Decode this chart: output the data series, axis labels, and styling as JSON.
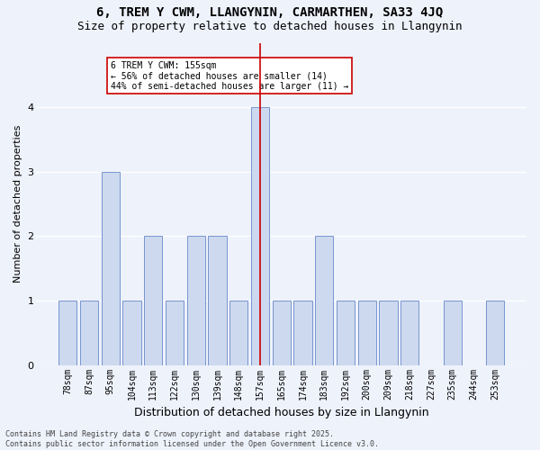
{
  "title": "6, TREM Y CWM, LLANGYNIN, CARMARTHEN, SA33 4JQ",
  "subtitle": "Size of property relative to detached houses in Llangynin",
  "xlabel": "Distribution of detached houses by size in Llangynin",
  "ylabel": "Number of detached properties",
  "categories": [
    "78sqm",
    "87sqm",
    "95sqm",
    "104sqm",
    "113sqm",
    "122sqm",
    "130sqm",
    "139sqm",
    "148sqm",
    "157sqm",
    "165sqm",
    "174sqm",
    "183sqm",
    "192sqm",
    "200sqm",
    "209sqm",
    "218sqm",
    "227sqm",
    "235sqm",
    "244sqm",
    "253sqm"
  ],
  "values": [
    1,
    1,
    3,
    1,
    2,
    1,
    2,
    2,
    1,
    4,
    1,
    1,
    2,
    1,
    1,
    1,
    1,
    0,
    1,
    0,
    1
  ],
  "bar_color": "#cdd9ee",
  "bar_edge_color": "#6688cc",
  "highlight_index": 9,
  "highlight_line_color": "#cc0000",
  "annotation_text": "6 TREM Y CWM: 155sqm\n← 56% of detached houses are smaller (14)\n44% of semi-detached houses are larger (11) →",
  "annotation_box_color": "#ffffff",
  "annotation_box_edge_color": "#cc0000",
  "ylim": [
    0,
    5
  ],
  "yticks": [
    0,
    1,
    2,
    3,
    4
  ],
  "background_color": "#eef2fb",
  "grid_color": "#ffffff",
  "footer": "Contains HM Land Registry data © Crown copyright and database right 2025.\nContains public sector information licensed under the Open Government Licence v3.0.",
  "title_fontsize": 10,
  "subtitle_fontsize": 9,
  "ylabel_fontsize": 8,
  "xlabel_fontsize": 9,
  "tick_fontsize": 7,
  "annotation_fontsize": 7,
  "footer_fontsize": 6
}
